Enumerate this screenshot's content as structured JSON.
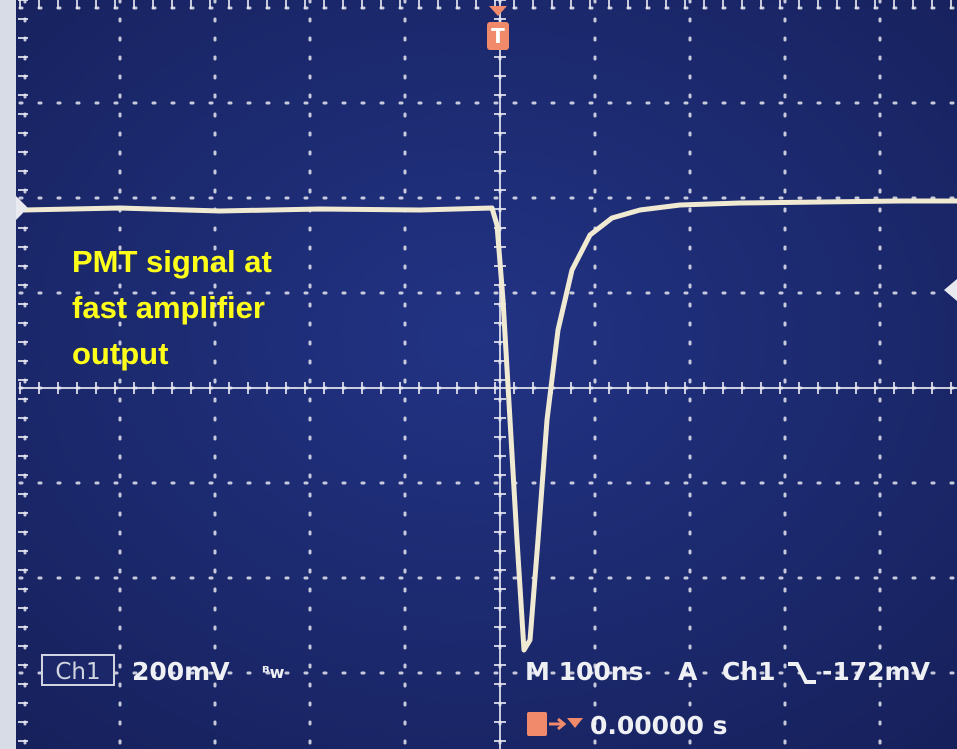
{
  "annotation": {
    "lines": [
      "PMT signal at",
      "fast amplifier",
      "output"
    ]
  },
  "trigger_marker": "T",
  "status": {
    "channel": "Ch1",
    "scale": "200mV",
    "timebase": "M 100ns",
    "trigger_mode": "A",
    "trigger_source": "Ch1",
    "trigger_level": "-172mV",
    "trigger_position": "0.00000 s"
  }
}
